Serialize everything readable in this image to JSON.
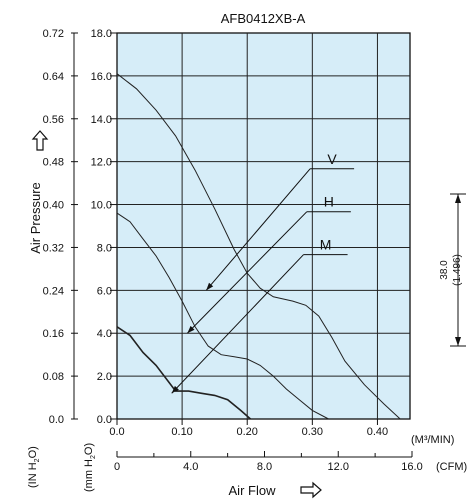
{
  "chart_data": {
    "type": "line",
    "title": "AFB0412XB-A",
    "xlabel": "Air Flow",
    "ylabel": "Air Pressure",
    "x_unit_primary": "(M³/MIN)",
    "x_unit_secondary": "(CFM)",
    "y_unit_inch": "(IN H",
    "y_unit_mm": "(mm H",
    "y_unit_sub": "2",
    "y_unit_close": "O)",
    "xlim": [
      0,
      0.45
    ],
    "ylim": [
      0,
      18
    ],
    "x_ticks_m3min": [
      "0.0",
      "0.10",
      "0.20",
      "0.30",
      "0.40"
    ],
    "x_ticks_cfm": [
      "0",
      "4.0",
      "8.0",
      "12.0",
      "16.0"
    ],
    "y_ticks_mm": [
      "0.0",
      "2.0",
      "4.0",
      "6.0",
      "8.0",
      "10.0",
      "12.0",
      "14.0",
      "16.0",
      "18.0"
    ],
    "y_ticks_inch": [
      "0.0",
      "0.08",
      "0.16",
      "0.24",
      "0.32",
      "0.40",
      "0.48",
      "0.56",
      "0.64",
      "0.72"
    ],
    "grid": true,
    "series": [
      {
        "name": "V",
        "label_at": [
          0.315,
          11.9
        ],
        "pointer_to": [
          0.137,
          6.0
        ],
        "x": [
          0.0,
          0.03,
          0.06,
          0.09,
          0.12,
          0.15,
          0.18,
          0.2,
          0.22,
          0.24,
          0.27,
          0.29,
          0.31,
          0.33,
          0.35,
          0.38,
          0.41,
          0.435
        ],
        "y": [
          16.1,
          15.4,
          14.4,
          13.2,
          11.6,
          9.8,
          7.9,
          6.8,
          6.1,
          5.7,
          5.5,
          5.3,
          4.8,
          3.8,
          2.7,
          1.6,
          0.7,
          0.0
        ]
      },
      {
        "name": "H",
        "label_at": [
          0.31,
          9.9
        ],
        "pointer_to": [
          0.108,
          4.0
        ],
        "x": [
          0.0,
          0.02,
          0.04,
          0.06,
          0.08,
          0.1,
          0.12,
          0.14,
          0.16,
          0.18,
          0.2,
          0.22,
          0.24,
          0.26,
          0.28,
          0.3,
          0.325
        ],
        "y": [
          9.6,
          9.2,
          8.4,
          7.6,
          6.6,
          5.5,
          4.3,
          3.4,
          3.0,
          2.9,
          2.8,
          2.5,
          2.0,
          1.4,
          0.9,
          0.4,
          0.0
        ]
      },
      {
        "name": "M",
        "label_at": [
          0.305,
          7.9
        ],
        "pointer_to": [
          0.084,
          1.2
        ],
        "x": [
          0.0,
          0.02,
          0.04,
          0.06,
          0.08,
          0.09,
          0.11,
          0.13,
          0.15,
          0.17,
          0.19,
          0.205
        ],
        "y": [
          4.3,
          3.9,
          3.1,
          2.5,
          1.7,
          1.3,
          1.3,
          1.2,
          1.1,
          0.9,
          0.4,
          0.0
        ]
      }
    ]
  }
}
